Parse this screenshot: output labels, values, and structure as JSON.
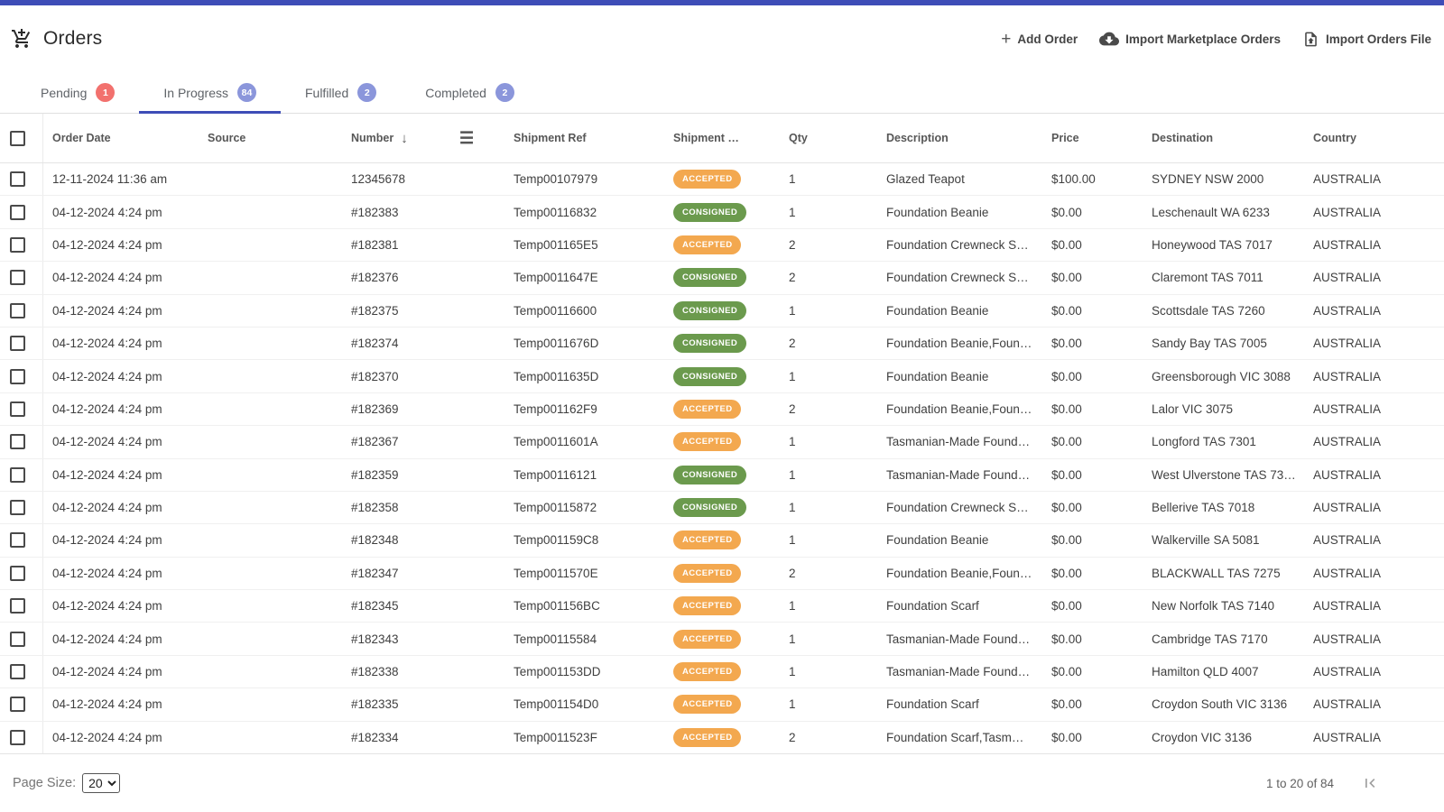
{
  "colors": {
    "topbar": "#3E4DB7",
    "accent": "#3E4DB7",
    "badge_red": "#F2716E",
    "badge_indigo": "#8B96DB"
  },
  "icons": {
    "orders": "add-shopping-cart",
    "add_order": "plus",
    "import_marketplace": "cloud-download",
    "import_file": "file-upload",
    "sort": "arrow-down",
    "column_menu": "hamburger",
    "pagination_first": "first-page"
  },
  "header": {
    "title": "Orders",
    "actions": {
      "add_order": "Add Order",
      "import_marketplace": "Import Marketplace Orders",
      "import_file": "Import Orders File"
    }
  },
  "tabs": [
    {
      "label": "Pending",
      "count": "1",
      "badge_color": "#F2716E",
      "active": false
    },
    {
      "label": "In Progress",
      "count": "84",
      "badge_color": "#8B96DB",
      "active": true
    },
    {
      "label": "Fulfilled",
      "count": "2",
      "badge_color": "#8B96DB",
      "active": false
    },
    {
      "label": "Completed",
      "count": "2",
      "badge_color": "#8B96DB",
      "active": false
    }
  ],
  "statuses": {
    "ACCEPTED": "#F3A84F",
    "CONSIGNED": "#6B9A4D"
  },
  "table": {
    "columns": [
      "Order Date",
      "Source",
      "Number",
      "Shipment Ref",
      "Shipment …",
      "Qty",
      "Description",
      "Price",
      "Destination",
      "Country"
    ],
    "rows": [
      {
        "order_date": "12-11-2024 11:36 am",
        "source": "",
        "number": "12345678",
        "shipment_ref": "Temp00107979",
        "status": "ACCEPTED",
        "qty": "1",
        "description": "Glazed Teapot",
        "price": "$100.00",
        "destination": "SYDNEY NSW 2000",
        "country": "AUSTRALIA"
      },
      {
        "order_date": "04-12-2024 4:24 pm",
        "source": "",
        "number": "#182383",
        "shipment_ref": "Temp00116832",
        "status": "CONSIGNED",
        "qty": "1",
        "description": "Foundation Beanie",
        "price": "$0.00",
        "destination": "Leschenault WA 6233",
        "country": "AUSTRALIA"
      },
      {
        "order_date": "04-12-2024 4:24 pm",
        "source": "",
        "number": "#182381",
        "shipment_ref": "Temp001165E5",
        "status": "ACCEPTED",
        "qty": "2",
        "description": "Foundation Crewneck S…",
        "price": "$0.00",
        "destination": "Honeywood TAS 7017",
        "country": "AUSTRALIA"
      },
      {
        "order_date": "04-12-2024 4:24 pm",
        "source": "",
        "number": "#182376",
        "shipment_ref": "Temp0011647E",
        "status": "CONSIGNED",
        "qty": "2",
        "description": "Foundation Crewneck S…",
        "price": "$0.00",
        "destination": "Claremont TAS 7011",
        "country": "AUSTRALIA"
      },
      {
        "order_date": "04-12-2024 4:24 pm",
        "source": "",
        "number": "#182375",
        "shipment_ref": "Temp00116600",
        "status": "CONSIGNED",
        "qty": "1",
        "description": "Foundation Beanie",
        "price": "$0.00",
        "destination": "Scottsdale TAS 7260",
        "country": "AUSTRALIA"
      },
      {
        "order_date": "04-12-2024 4:24 pm",
        "source": "",
        "number": "#182374",
        "shipment_ref": "Temp0011676D",
        "status": "CONSIGNED",
        "qty": "2",
        "description": "Foundation Beanie,Foun…",
        "price": "$0.00",
        "destination": "Sandy Bay TAS 7005",
        "country": "AUSTRALIA"
      },
      {
        "order_date": "04-12-2024 4:24 pm",
        "source": "",
        "number": "#182370",
        "shipment_ref": "Temp0011635D",
        "status": "CONSIGNED",
        "qty": "1",
        "description": "Foundation Beanie",
        "price": "$0.00",
        "destination": "Greensborough VIC 3088",
        "country": "AUSTRALIA"
      },
      {
        "order_date": "04-12-2024 4:24 pm",
        "source": "",
        "number": "#182369",
        "shipment_ref": "Temp001162F9",
        "status": "ACCEPTED",
        "qty": "2",
        "description": "Foundation Beanie,Foun…",
        "price": "$0.00",
        "destination": "Lalor VIC 3075",
        "country": "AUSTRALIA"
      },
      {
        "order_date": "04-12-2024 4:24 pm",
        "source": "",
        "number": "#182367",
        "shipment_ref": "Temp0011601A",
        "status": "ACCEPTED",
        "qty": "1",
        "description": "Tasmanian-Made Found…",
        "price": "$0.00",
        "destination": "Longford TAS 7301",
        "country": "AUSTRALIA"
      },
      {
        "order_date": "04-12-2024 4:24 pm",
        "source": "",
        "number": "#182359",
        "shipment_ref": "Temp00116121",
        "status": "CONSIGNED",
        "qty": "1",
        "description": "Tasmanian-Made Found…",
        "price": "$0.00",
        "destination": "West Ulverstone TAS 73…",
        "country": "AUSTRALIA"
      },
      {
        "order_date": "04-12-2024 4:24 pm",
        "source": "",
        "number": "#182358",
        "shipment_ref": "Temp00115872",
        "status": "CONSIGNED",
        "qty": "1",
        "description": "Foundation Crewneck S…",
        "price": "$0.00",
        "destination": "Bellerive TAS 7018",
        "country": "AUSTRALIA"
      },
      {
        "order_date": "04-12-2024 4:24 pm",
        "source": "",
        "number": "#182348",
        "shipment_ref": "Temp001159C8",
        "status": "ACCEPTED",
        "qty": "1",
        "description": "Foundation Beanie",
        "price": "$0.00",
        "destination": "Walkerville SA 5081",
        "country": "AUSTRALIA"
      },
      {
        "order_date": "04-12-2024 4:24 pm",
        "source": "",
        "number": "#182347",
        "shipment_ref": "Temp0011570E",
        "status": "ACCEPTED",
        "qty": "2",
        "description": "Foundation Beanie,Foun…",
        "price": "$0.00",
        "destination": "BLACKWALL TAS 7275",
        "country": "AUSTRALIA"
      },
      {
        "order_date": "04-12-2024 4:24 pm",
        "source": "",
        "number": "#182345",
        "shipment_ref": "Temp001156BC",
        "status": "ACCEPTED",
        "qty": "1",
        "description": "Foundation Scarf",
        "price": "$0.00",
        "destination": "New Norfolk TAS 7140",
        "country": "AUSTRALIA"
      },
      {
        "order_date": "04-12-2024 4:24 pm",
        "source": "",
        "number": "#182343",
        "shipment_ref": "Temp00115584",
        "status": "ACCEPTED",
        "qty": "1",
        "description": "Tasmanian-Made Found…",
        "price": "$0.00",
        "destination": "Cambridge TAS 7170",
        "country": "AUSTRALIA"
      },
      {
        "order_date": "04-12-2024 4:24 pm",
        "source": "",
        "number": "#182338",
        "shipment_ref": "Temp001153DD",
        "status": "ACCEPTED",
        "qty": "1",
        "description": "Tasmanian-Made Found…",
        "price": "$0.00",
        "destination": "Hamilton QLD 4007",
        "country": "AUSTRALIA"
      },
      {
        "order_date": "04-12-2024 4:24 pm",
        "source": "",
        "number": "#182335",
        "shipment_ref": "Temp001154D0",
        "status": "ACCEPTED",
        "qty": "1",
        "description": "Foundation Scarf",
        "price": "$0.00",
        "destination": "Croydon South VIC 3136",
        "country": "AUSTRALIA"
      },
      {
        "order_date": "04-12-2024 4:24 pm",
        "source": "",
        "number": "#182334",
        "shipment_ref": "Temp0011523F",
        "status": "ACCEPTED",
        "qty": "2",
        "description": "Foundation Scarf,Tasm…",
        "price": "$0.00",
        "destination": "Croydon VIC 3136",
        "country": "AUSTRALIA"
      }
    ]
  },
  "footer": {
    "page_size_label": "Page Size:",
    "page_size": "20",
    "range_text": "1 to 20 of 84"
  }
}
